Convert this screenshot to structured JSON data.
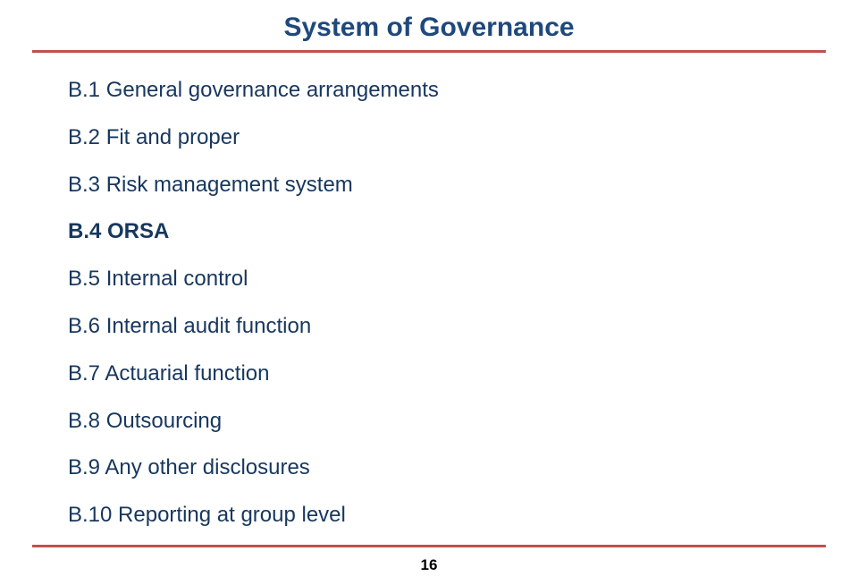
{
  "title": "System of Governance",
  "items": [
    {
      "text": "B.1 General governance arrangements",
      "bold": false
    },
    {
      "text": "B.2 Fit and proper",
      "bold": false
    },
    {
      "text": "B.3 Risk management system",
      "bold": false
    },
    {
      "text": "B.4 ORSA",
      "bold": true
    },
    {
      "text": "B.5 Internal control",
      "bold": false
    },
    {
      "text": "B.6 Internal audit function",
      "bold": false
    },
    {
      "text": "B.7 Actuarial function",
      "bold": false
    },
    {
      "text": "B.8 Outsourcing",
      "bold": false
    },
    {
      "text": "B.9 Any other disclosures",
      "bold": false
    },
    {
      "text": "B.10 Reporting at group level",
      "bold": false
    }
  ],
  "page_number": "16",
  "colors": {
    "title": "#1f497d",
    "body_text": "#17375e",
    "rule": "#c0504d",
    "background": "#ffffff"
  },
  "fonts": {
    "title_size_pt": 30,
    "body_size_pt": 24,
    "pagenum_size_pt": 17,
    "family": "Trebuchet MS"
  }
}
